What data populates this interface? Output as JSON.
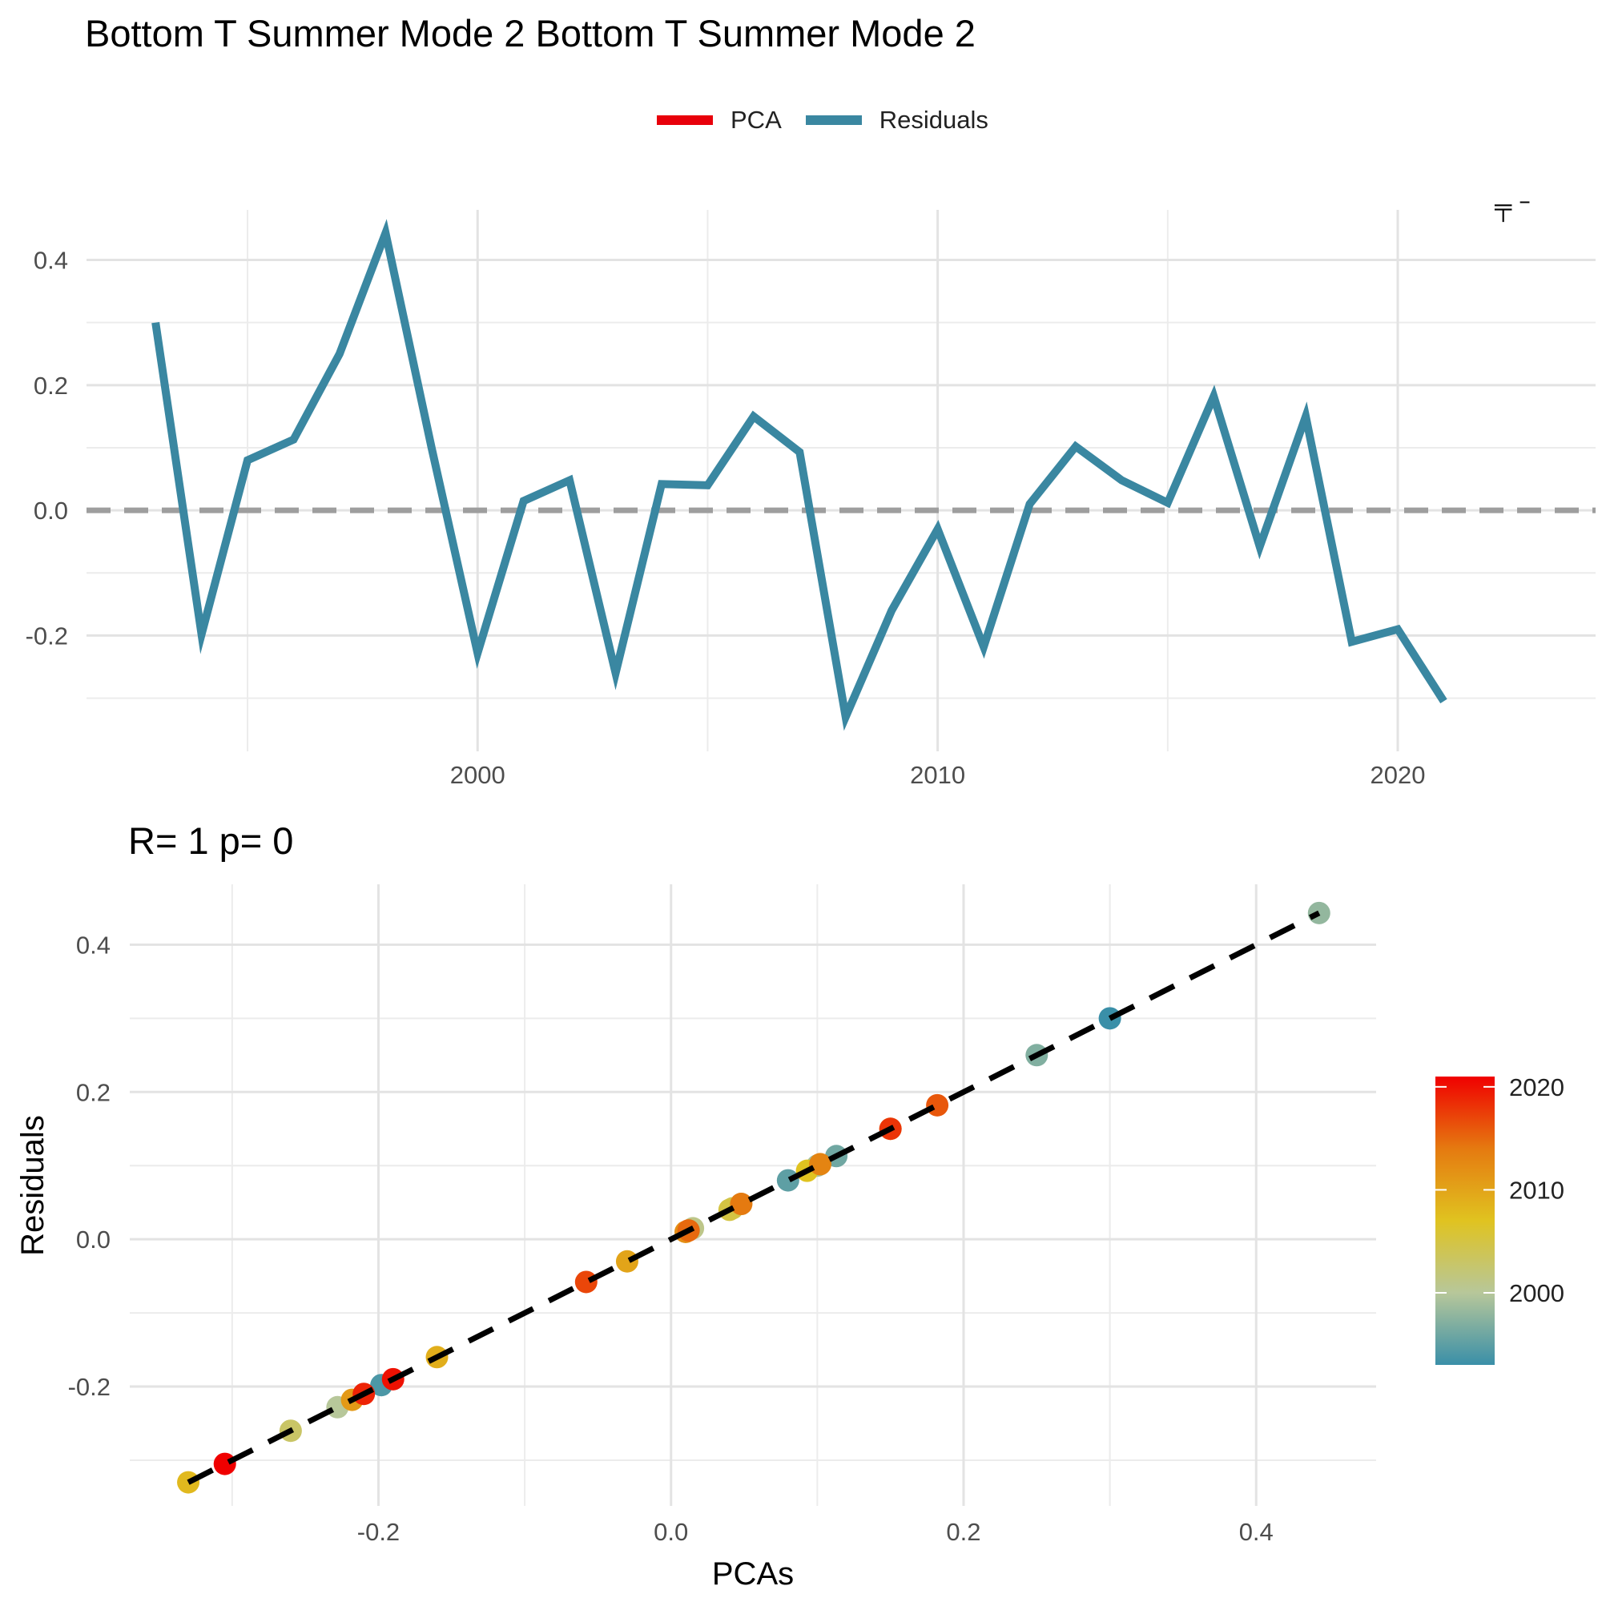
{
  "title": "Bottom T Summer Mode 2 Bottom T Summer Mode 2",
  "legend": [
    {
      "label": "PCA",
      "color": "#e8000b"
    },
    {
      "label": "Residuals",
      "color": "#3a87a1"
    }
  ],
  "corner_mark": "╤ ⁻",
  "stats_label": "R= 1  p= 0",
  "chart_data": [
    {
      "type": "line",
      "title": "",
      "xlabel": "",
      "ylabel": "",
      "x": [
        1993,
        1994,
        1995,
        1996,
        1997,
        1998,
        1999,
        2000,
        2001,
        2002,
        2003,
        2004,
        2005,
        2006,
        2007,
        2008,
        2009,
        2010,
        2011,
        2012,
        2013,
        2014,
        2015,
        2016,
        2017,
        2018,
        2019,
        2020,
        2021
      ],
      "series": [
        {
          "name": "Residuals",
          "color": "#3a87a1",
          "values": [
            0.3,
            -0.198,
            0.08,
            0.113,
            0.25,
            0.443,
            0.1,
            -0.228,
            0.015,
            0.048,
            -0.26,
            0.042,
            0.04,
            0.15,
            0.093,
            -0.33,
            -0.16,
            -0.03,
            -0.218,
            0.01,
            0.102,
            0.048,
            0.012,
            0.182,
            -0.058,
            0.15,
            -0.21,
            -0.19,
            -0.305
          ]
        }
      ],
      "reference_line": {
        "y": 0,
        "style": "dashed",
        "color": "#9e9e9e"
      },
      "xticks": [
        2000,
        2010,
        2020
      ],
      "xlim": [
        1991.5,
        2024.3
      ],
      "yticks": [
        -0.2,
        0.0,
        0.2,
        0.4
      ],
      "ytick_labels": [
        "-0.2",
        "0.0",
        "0.2",
        "0.4"
      ],
      "ylim": [
        -0.385,
        0.48
      ],
      "grid": true
    },
    {
      "type": "scatter",
      "title": "R= 1  p= 0",
      "xlabel": "PCAs",
      "ylabel": "Residuals",
      "points": [
        {
          "x": 0.3,
          "y": 0.3,
          "year": 1993
        },
        {
          "x": -0.198,
          "y": -0.198,
          "year": 1994
        },
        {
          "x": 0.08,
          "y": 0.08,
          "year": 1995
        },
        {
          "x": 0.113,
          "y": 0.113,
          "year": 1996
        },
        {
          "x": 0.25,
          "y": 0.25,
          "year": 1997
        },
        {
          "x": 0.443,
          "y": 0.443,
          "year": 1998
        },
        {
          "x": 0.1,
          "y": 0.1,
          "year": 1999
        },
        {
          "x": -0.228,
          "y": -0.228,
          "year": 2000
        },
        {
          "x": 0.015,
          "y": 0.015,
          "year": 2001
        },
        {
          "x": 0.048,
          "y": 0.048,
          "year": 2002
        },
        {
          "x": -0.26,
          "y": -0.26,
          "year": 2003
        },
        {
          "x": 0.042,
          "y": 0.042,
          "year": 2004
        },
        {
          "x": 0.04,
          "y": 0.04,
          "year": 2005
        },
        {
          "x": 0.15,
          "y": 0.15,
          "year": 2006
        },
        {
          "x": 0.093,
          "y": 0.093,
          "year": 2007
        },
        {
          "x": -0.33,
          "y": -0.33,
          "year": 2008
        },
        {
          "x": -0.16,
          "y": -0.16,
          "year": 2009
        },
        {
          "x": -0.03,
          "y": -0.03,
          "year": 2010
        },
        {
          "x": -0.218,
          "y": -0.218,
          "year": 2011
        },
        {
          "x": 0.01,
          "y": 0.01,
          "year": 2012
        },
        {
          "x": 0.102,
          "y": 0.102,
          "year": 2013
        },
        {
          "x": 0.048,
          "y": 0.048,
          "year": 2014
        },
        {
          "x": 0.012,
          "y": 0.012,
          "year": 2015
        },
        {
          "x": 0.182,
          "y": 0.182,
          "year": 2016
        },
        {
          "x": -0.058,
          "y": -0.058,
          "year": 2017
        },
        {
          "x": 0.15,
          "y": 0.15,
          "year": 2018
        },
        {
          "x": -0.21,
          "y": -0.21,
          "year": 2019
        },
        {
          "x": -0.19,
          "y": -0.19,
          "year": 2020
        },
        {
          "x": -0.305,
          "y": -0.305,
          "year": 2021
        }
      ],
      "fit_line": {
        "x": [
          -0.33,
          0.443
        ],
        "y": [
          -0.33,
          0.443
        ],
        "style": "dashed",
        "color": "#000000"
      },
      "xticks": [
        -0.2,
        0.0,
        0.2,
        0.4
      ],
      "xtick_labels": [
        "-0.2",
        "0.0",
        "0.2",
        "0.4"
      ],
      "yticks": [
        -0.2,
        0.0,
        0.2,
        0.4
      ],
      "ytick_labels": [
        "-0.2",
        "0.0",
        "0.2",
        "0.4"
      ],
      "xlim": [
        -0.37,
        0.482
      ],
      "ylim": [
        -0.362,
        0.482
      ],
      "grid": true,
      "colorbar": {
        "range": [
          1993,
          2021
        ],
        "ticks": [
          2000,
          2010,
          2020
        ],
        "tick_labels": [
          "2000",
          "2010",
          "2020"
        ],
        "colors": [
          "#3a8fa8",
          "#b7c79a",
          "#e0c320",
          "#e57a10",
          "#f00000"
        ]
      }
    }
  ]
}
